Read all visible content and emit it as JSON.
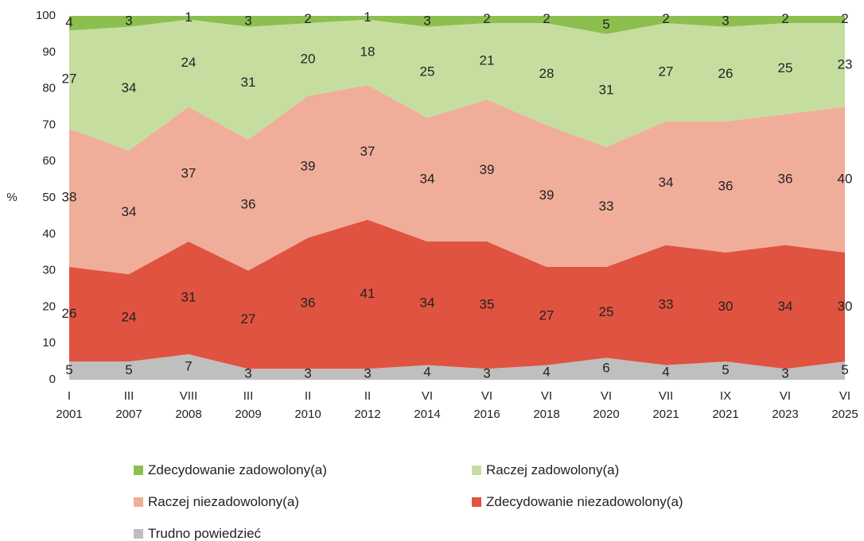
{
  "chart_data": {
    "type": "stacked_area",
    "y_label": "%",
    "categories": [
      "I 2001",
      "III 2007",
      "VIII 2008",
      "III 2009",
      "II 2010",
      "II 2012",
      "VI 2014",
      "VI 2016",
      "VI 2018",
      "VI 2020",
      "VII 2021",
      "IX 2021",
      "VI 2023",
      "VI 2025"
    ],
    "series": [
      {
        "name": "Trudno powiedzieć",
        "color": "#bfbfbf",
        "values": [
          5,
          5,
          7,
          3,
          3,
          3,
          4,
          3,
          4,
          6,
          4,
          5,
          3,
          5
        ]
      },
      {
        "name": "Zdecydowanie niezadowolony(a)",
        "color": "#e05340",
        "values": [
          26,
          24,
          31,
          27,
          36,
          41,
          34,
          35,
          27,
          25,
          33,
          30,
          34,
          30
        ]
      },
      {
        "name": "Raczej niezadowolony(a)",
        "color": "#f0ae9a",
        "values": [
          38,
          34,
          37,
          36,
          39,
          37,
          34,
          39,
          39,
          33,
          34,
          36,
          36,
          40
        ]
      },
      {
        "name": "Raczej zadowolony(a)",
        "color": "#c5dea0",
        "values": [
          27,
          34,
          24,
          31,
          20,
          18,
          25,
          21,
          28,
          31,
          27,
          26,
          25,
          23
        ]
      },
      {
        "name": "Zdecydowanie zadowolony(a)",
        "color": "#8cbf4f",
        "values": [
          4,
          3,
          1,
          3,
          2,
          1,
          3,
          2,
          2,
          5,
          2,
          3,
          2,
          2
        ]
      }
    ],
    "ylim": [
      0,
      100
    ],
    "yticks": [
      0,
      10,
      20,
      30,
      40,
      50,
      60,
      70,
      80,
      90,
      100
    ],
    "grid": false
  }
}
